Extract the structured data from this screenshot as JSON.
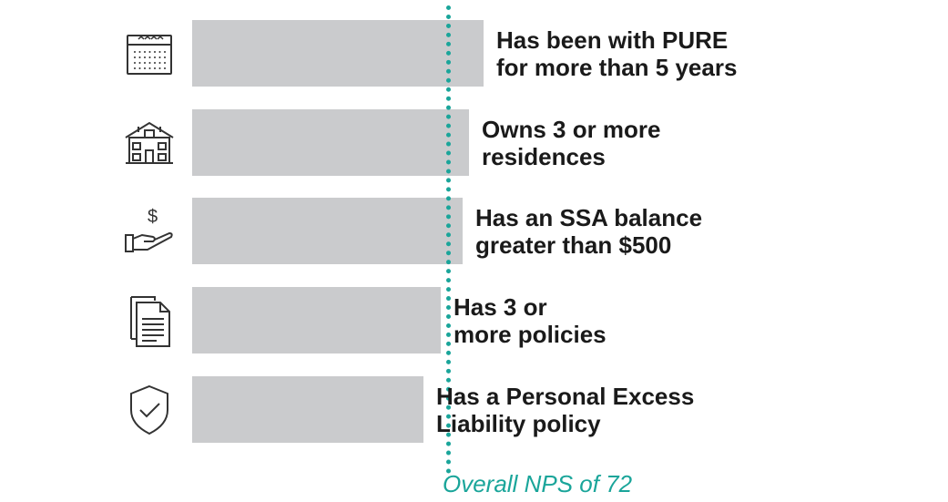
{
  "chart_data": {
    "type": "bar",
    "orientation": "horizontal",
    "categories": [
      "Has been with PURE\nfor more than 5 years",
      "Owns 3 or more\nresidences",
      "Has an SSA balance\ngreater than $500",
      "Has 3 or\nmore policies",
      "Has a Personal Excess\nLiability policy"
    ],
    "values": [
      82,
      78,
      76,
      70,
      65
    ],
    "icons": [
      "calendar-icon",
      "house-icon",
      "hand-dollar-icon",
      "document-icon",
      "shield-check-icon"
    ],
    "reference_line": {
      "value": 72,
      "label": "Overall NPS of 72",
      "color": "#1aa59a"
    },
    "bar_color": "#cacbcd",
    "xlim": [
      0,
      100
    ],
    "title": "",
    "xlabel": "",
    "ylabel": "",
    "grid": false,
    "legend": "none"
  }
}
